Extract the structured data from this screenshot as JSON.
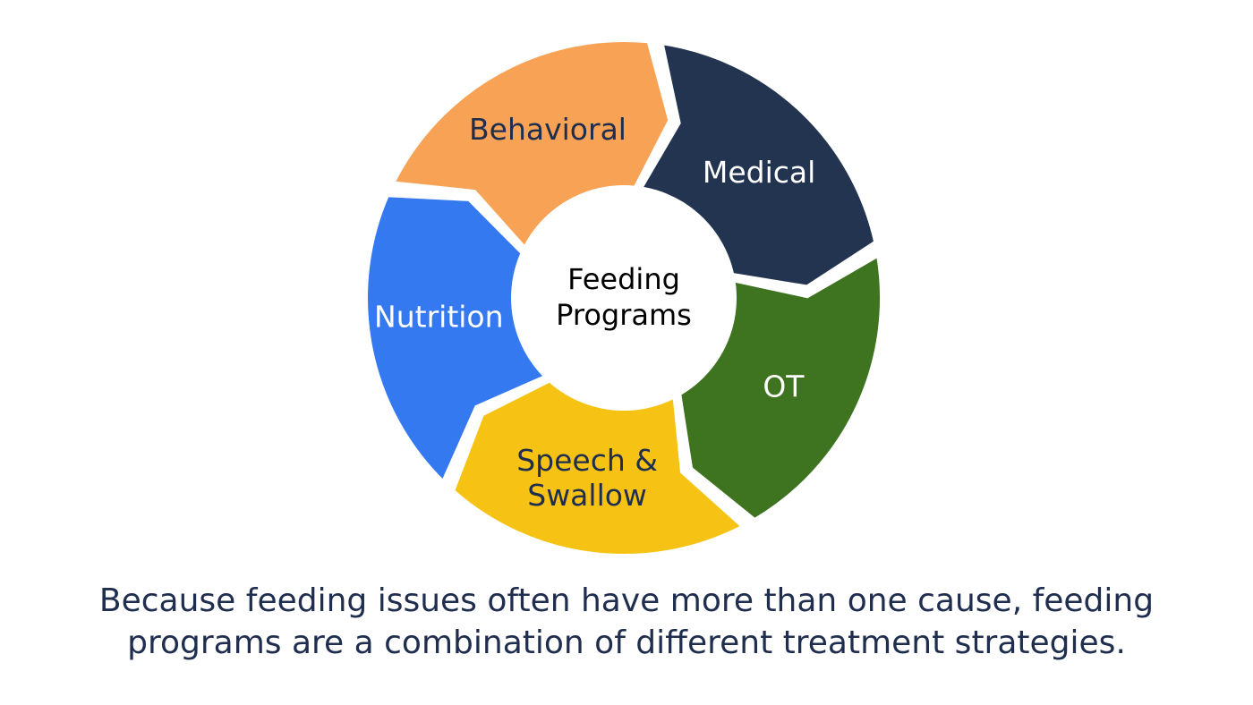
{
  "diagram": {
    "center": {
      "lines": [
        "Feeding",
        "Programs"
      ],
      "text_color": "#1f2d4e"
    },
    "segments": [
      {
        "id": "behavioral",
        "lines": [
          "Behavioral"
        ],
        "fill": "#f7a254",
        "text_color": "#1f2d4e"
      },
      {
        "id": "medical",
        "lines": [
          "Medical"
        ],
        "fill": "#22344f",
        "text_color": "#ffffff"
      },
      {
        "id": "ot",
        "lines": [
          "OT"
        ],
        "fill": "#3e7320",
        "text_color": "#ffffff"
      },
      {
        "id": "speech-swallow",
        "lines": [
          "Speech &",
          "Swallow"
        ],
        "fill": "#f6c315",
        "text_color": "#1f2d4e"
      },
      {
        "id": "nutrition",
        "lines": [
          "Nutrition"
        ],
        "fill": "#3579f0",
        "text_color": "#ffffff"
      }
    ]
  },
  "caption": {
    "line1": "Because feeding issues often have more than one cause, feeding",
    "line2": "programs are a combination of different treatment strategies."
  }
}
